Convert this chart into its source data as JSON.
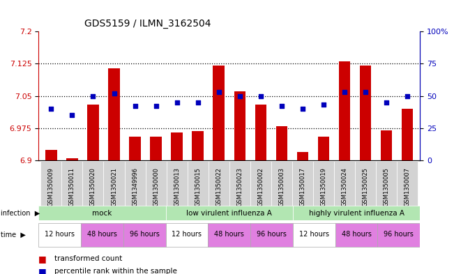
{
  "title": "GDS5159 / ILMN_3162504",
  "samples": [
    "GSM1350009",
    "GSM1350011",
    "GSM1350020",
    "GSM1350021",
    "GSM1349996",
    "GSM1350000",
    "GSM1350013",
    "GSM1350015",
    "GSM1350022",
    "GSM1350023",
    "GSM1350002",
    "GSM1350003",
    "GSM1350017",
    "GSM1350019",
    "GSM1350024",
    "GSM1350025",
    "GSM1350005",
    "GSM1350007"
  ],
  "transformed_counts": [
    6.925,
    6.905,
    7.03,
    7.115,
    6.955,
    6.955,
    6.965,
    6.968,
    7.12,
    7.06,
    7.03,
    6.98,
    6.92,
    6.955,
    7.13,
    7.12,
    6.97,
    7.02
  ],
  "percentile_ranks": [
    40,
    35,
    50,
    52,
    42,
    42,
    45,
    45,
    53,
    50,
    50,
    42,
    40,
    43,
    53,
    53,
    45,
    50
  ],
  "ylim_left": [
    6.9,
    7.2
  ],
  "ylim_right": [
    0,
    100
  ],
  "yticks_left": [
    6.9,
    6.975,
    7.05,
    7.125,
    7.2
  ],
  "yticks_right": [
    0,
    25,
    50,
    75,
    100
  ],
  "ytick_labels_left": [
    "6.9",
    "6.975",
    "7.05",
    "7.125",
    "7.2"
  ],
  "ytick_labels_right": [
    "0",
    "25",
    "50",
    "75",
    "100%"
  ],
  "hlines": [
    6.975,
    7.05,
    7.125
  ],
  "bar_color": "#CC0000",
  "dot_color": "#0000BB",
  "bar_width": 0.55,
  "left_axis_color": "#CC0000",
  "right_axis_color": "#0000BB",
  "inf_groups": [
    {
      "label": "mock",
      "start": 0,
      "end": 6,
      "color": "#b2e6b2"
    },
    {
      "label": "low virulent influenza A",
      "start": 6,
      "end": 12,
      "color": "#b2e6b2"
    },
    {
      "label": "highly virulent influenza A",
      "start": 12,
      "end": 18,
      "color": "#b2e6b2"
    }
  ],
  "time_groups": [
    {
      "label": "12 hours",
      "start": 0,
      "end": 2,
      "color": "#ffffff"
    },
    {
      "label": "48 hours",
      "start": 2,
      "end": 4,
      "color": "#e080e0"
    },
    {
      "label": "96 hours",
      "start": 4,
      "end": 6,
      "color": "#e080e0"
    },
    {
      "label": "12 hours",
      "start": 6,
      "end": 8,
      "color": "#ffffff"
    },
    {
      "label": "48 hours",
      "start": 8,
      "end": 10,
      "color": "#e080e0"
    },
    {
      "label": "96 hours",
      "start": 10,
      "end": 12,
      "color": "#e080e0"
    },
    {
      "label": "12 hours",
      "start": 12,
      "end": 14,
      "color": "#ffffff"
    },
    {
      "label": "48 hours",
      "start": 14,
      "end": 16,
      "color": "#e080e0"
    },
    {
      "label": "96 hours",
      "start": 16,
      "end": 18,
      "color": "#e080e0"
    }
  ],
  "legend_items": [
    {
      "label": "transformed count",
      "color": "#CC0000"
    },
    {
      "label": "percentile rank within the sample",
      "color": "#0000BB"
    }
  ]
}
